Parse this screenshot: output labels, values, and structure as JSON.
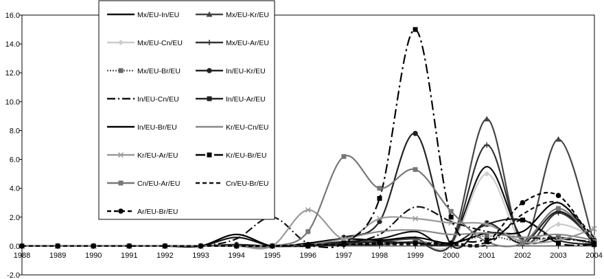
{
  "chart_data": {
    "type": "line",
    "title": "",
    "xlabel": "",
    "ylabel": "",
    "ylim": [
      -2.0,
      16.0
    ],
    "y_ticks": [
      "-2.0",
      "0.0",
      "2.0",
      "4.0",
      "6.0",
      "8.0",
      "10.0",
      "12.0",
      "14.0",
      "16.0"
    ],
    "y_tick_values": [
      -2,
      0,
      2,
      4,
      6,
      8,
      10,
      12,
      14,
      16
    ],
    "categories": [
      "1988",
      "1989",
      "1990",
      "1991",
      "1992",
      "1993",
      "1994",
      "1995",
      "1996",
      "1997",
      "1998",
      "1999",
      "2000",
      "2001",
      "2002",
      "2003",
      "2004"
    ],
    "grid": false,
    "legend_position": "top-left",
    "series": [
      {
        "name": "Mx/EU-In/EU",
        "color": "#111111",
        "dash": "",
        "marker": "none",
        "values": [
          0,
          0,
          0,
          0,
          0,
          0,
          0.6,
          0,
          0.1,
          0.3,
          0.5,
          1.0,
          0.3,
          5.5,
          0.5,
          0.6,
          0.2
        ]
      },
      {
        "name": "Mx/EU-Kr/EU",
        "color": "#444444",
        "dash": "",
        "marker": "triangle",
        "values": [
          0,
          0,
          0,
          0,
          0,
          0,
          0.1,
          0,
          0.1,
          0.2,
          0.3,
          0.5,
          0.2,
          8.8,
          0.3,
          7.4,
          0.2
        ]
      },
      {
        "name": "Mx/EU-Cn/EU",
        "color": "#cccccc",
        "dash": "",
        "marker": "diamond",
        "values": [
          0,
          0,
          0,
          0,
          0,
          0,
          0,
          0,
          0,
          0.1,
          0.1,
          0.2,
          0.1,
          5.0,
          0.2,
          1.5,
          0.6
        ]
      },
      {
        "name": "Mx/EU-Ar/EU",
        "color": "#333333",
        "dash": "",
        "marker": "plus",
        "values": [
          0,
          0,
          0,
          0,
          0,
          0,
          0,
          0,
          0,
          0.1,
          0.1,
          0.3,
          0.1,
          7.0,
          0.3,
          2.3,
          0.3
        ]
      },
      {
        "name": "Mx/EU-Br/EU",
        "color": "#666666",
        "dash": "2,2",
        "marker": "square",
        "values": [
          0,
          0,
          0,
          0,
          0,
          0,
          0,
          0,
          0,
          0.2,
          0.2,
          0.3,
          0.2,
          0.7,
          0.3,
          0.6,
          0.1
        ]
      },
      {
        "name": "In/EU-Kr/EU",
        "color": "#222222",
        "dash": "",
        "marker": "circle",
        "values": [
          0,
          0,
          0,
          0,
          0,
          0,
          0.1,
          0,
          0.1,
          0.6,
          1.7,
          7.8,
          0.1,
          1.6,
          0.2,
          2.4,
          0.4
        ]
      },
      {
        "name": "In/EU-Cn/EU",
        "color": "#111111",
        "dash": "12,4,2,4",
        "marker": "none",
        "values": [
          0,
          0,
          0,
          0,
          0,
          0,
          0.5,
          2.0,
          0.2,
          0.2,
          0.8,
          2.7,
          1.7,
          1.0,
          0.6,
          0.5,
          0.3
        ]
      },
      {
        "name": "In/EU-Ar/EU",
        "color": "#222222",
        "dash": "",
        "marker": "square",
        "values": [
          0,
          0,
          0,
          0,
          0,
          0,
          0,
          0,
          0,
          0.2,
          0.3,
          0.2,
          0.1,
          1.5,
          1.8,
          0.4,
          0.1
        ]
      },
      {
        "name": "In/EU-Br/EU",
        "color": "#000000",
        "dash": "",
        "marker": "none",
        "values": [
          0,
          0,
          0,
          0,
          0,
          0,
          0.8,
          0,
          0.2,
          0.5,
          0.4,
          0.6,
          0.2,
          0.9,
          1.0,
          3.0,
          0.1
        ]
      },
      {
        "name": "Kr/EU-Cn/EU",
        "color": "#888888",
        "dash": "",
        "marker": "none",
        "values": [
          0,
          0,
          0,
          0,
          0,
          0,
          0,
          0,
          0.1,
          0.5,
          1.0,
          1.1,
          0.8,
          0.9,
          0.6,
          0.8,
          0.4
        ]
      },
      {
        "name": "Kr/EU-Ar/EU",
        "color": "#999999",
        "dash": "",
        "marker": "cross",
        "values": [
          0,
          0,
          0,
          0,
          0,
          0,
          0,
          0,
          2.5,
          0.5,
          1.9,
          1.9,
          1.6,
          1.5,
          0.3,
          0.4,
          1.2
        ]
      },
      {
        "name": "Kr/EU-Br/EU",
        "color": "#000000",
        "dash": "14,5,3,5",
        "marker": "square",
        "values": [
          0,
          0,
          0,
          0,
          0,
          0,
          0,
          0,
          0,
          0.2,
          3.3,
          15.0,
          2.0,
          0.4,
          1.8,
          0.2,
          0.1
        ]
      },
      {
        "name": "Cn/EU-Ar/EU",
        "color": "#777777",
        "dash": "",
        "marker": "square",
        "values": [
          0,
          0,
          0,
          0,
          0,
          0,
          0,
          0,
          1.0,
          6.2,
          4.0,
          5.3,
          2.4,
          0.3,
          0.2,
          2.6,
          0.3
        ]
      },
      {
        "name": "Cn/EU-Br/EU",
        "color": "#111111",
        "dash": "6,4",
        "marker": "none",
        "values": [
          0,
          0,
          0,
          0,
          0,
          0,
          0,
          0,
          0.1,
          0.1,
          0.1,
          0.1,
          0.1,
          0.1,
          2.2,
          3.0,
          0.6
        ]
      },
      {
        "name": "Ar/EU-Br/EU",
        "color": "#000000",
        "dash": "6,4",
        "marker": "circle",
        "values": [
          0,
          0,
          0,
          0,
          0,
          0,
          0,
          0,
          0.1,
          0.1,
          0.2,
          0.2,
          0.2,
          0.3,
          3.0,
          3.5,
          0.2
        ]
      }
    ]
  }
}
